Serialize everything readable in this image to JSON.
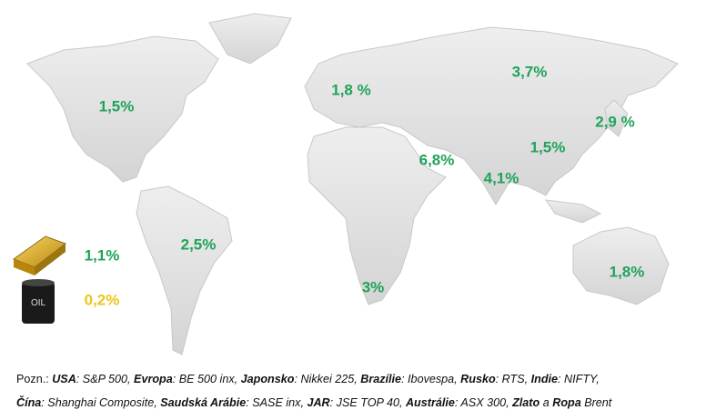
{
  "map": {
    "labels": [
      {
        "region": "USA",
        "text": "1,5%"
      },
      {
        "region": "Evropa",
        "text": "1,8 %"
      },
      {
        "region": "Rusko",
        "text": "3,7%"
      },
      {
        "region": "Japonsko",
        "text": "2,9 %"
      },
      {
        "region": "Čína",
        "text": "1,5%"
      },
      {
        "region": "Saudská Arábie",
        "text": "6,8%"
      },
      {
        "region": "Indie",
        "text": "4,1%"
      },
      {
        "region": "Brazílie",
        "text": "2,5%"
      },
      {
        "region": "JAR",
        "text": "3%"
      },
      {
        "region": "Austrálie",
        "text": "1,8%"
      },
      {
        "region": "Zlato",
        "text": "1,1%"
      },
      {
        "region": "Ropa",
        "text": "0,2%"
      }
    ],
    "barrel_text": "OIL"
  },
  "note": {
    "lines": [
      [
        {
          "t": "Pozn.: "
        },
        {
          "t": "USA",
          "bold": true
        },
        {
          "t": ": S&P 500, "
        },
        {
          "t": "Evropa",
          "bold": true
        },
        {
          "t": ": BE 500 inx, "
        },
        {
          "t": "Japonsko",
          "bold": true
        },
        {
          "t": ": Nikkei 225, "
        },
        {
          "t": "Brazílie",
          "bold": true
        },
        {
          "t": ": Ibovespa, "
        },
        {
          "t": "Rusko",
          "bold": true
        },
        {
          "t": ": RTS, "
        },
        {
          "t": "Indie",
          "bold": true
        },
        {
          "t": ": NIFTY,"
        }
      ],
      [
        {
          "t": "Čína",
          "bold": true
        },
        {
          "t": ": Shanghai Composite, "
        },
        {
          "t": "Saudská Arábie",
          "bold": true
        },
        {
          "t": ": SASE inx, "
        },
        {
          "t": "JAR",
          "bold": true
        },
        {
          "t": ": JSE TOP 40, "
        },
        {
          "t": "Austrálie",
          "bold": true
        },
        {
          "t": ": ASX 300, "
        },
        {
          "t": "Zlato",
          "bold": true
        },
        {
          "t": " a "
        },
        {
          "t": "Ropa",
          "bold": true
        },
        {
          "t": " Brent"
        }
      ]
    ]
  }
}
